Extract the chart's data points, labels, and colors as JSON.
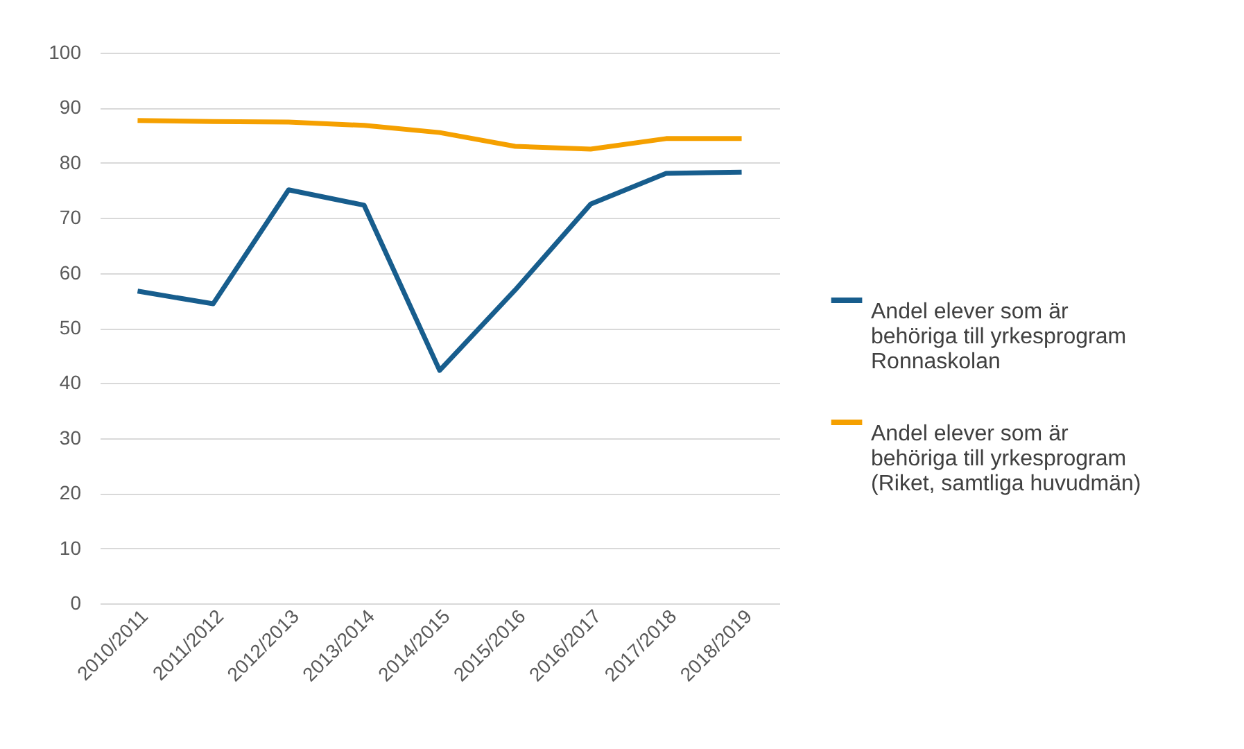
{
  "chart_data": {
    "type": "line",
    "categories": [
      "2010/2011",
      "2011/2012",
      "2012/2013",
      "2013/2014",
      "2014/2015",
      "2015/2016",
      "2016/2017",
      "2017/2018",
      "2018/2019"
    ],
    "series": [
      {
        "name": "Andel elever som är behöriga till yrkesprogram Ronnaskolan",
        "color": "#175d8d",
        "values": [
          56.7,
          54.4,
          75.1,
          72.3,
          42.3,
          56.9,
          72.5,
          78.1,
          78.3
        ]
      },
      {
        "name": "Andel elever som är behöriga till yrkesprogram (Riket, samtliga huvudmän)",
        "color": "#f5a000",
        "values": [
          87.7,
          87.5,
          87.4,
          86.8,
          85.5,
          83.0,
          82.5,
          84.4,
          84.4
        ]
      }
    ],
    "ylim": [
      0,
      100
    ],
    "yticks": [
      0,
      10,
      20,
      30,
      40,
      50,
      60,
      70,
      80,
      90,
      100
    ],
    "grid": "y",
    "legend": "right"
  }
}
